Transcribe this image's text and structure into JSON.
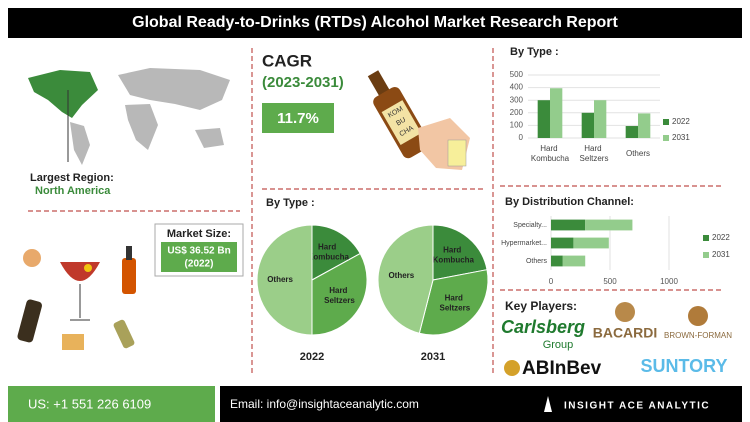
{
  "header": {
    "title": "Global Ready-to-Drinks (RTDs) Alcohol Market Research Report"
  },
  "region": {
    "label": "Largest Region:",
    "value": "North America"
  },
  "cagr": {
    "label": "CAGR",
    "period": "(2023-2031)",
    "value": "11.7%"
  },
  "bottle_label": [
    "KOM",
    "BU",
    "CHA"
  ],
  "market_size": {
    "label": "Market Size:",
    "value": "US$ 36.52 Bn",
    "year": "(2022)"
  },
  "pie_section": {
    "title": "By Type :"
  },
  "key_players": {
    "label": "Key Players:",
    "names": [
      "Carlsberg",
      "Group",
      "BACARDI",
      "BROWN-FORMAN",
      "ABInBev",
      "SUNTORY"
    ]
  },
  "footer": {
    "phone": "US: +1 551 226 6109",
    "email": "Email: info@insightaceanalytic.com",
    "brand": "INSIGHT ACE ANALYTIC"
  },
  "chart_data": [
    {
      "type": "bar",
      "title": "By Type :",
      "categories": [
        "Hard Kombucha",
        "Hard Seltzers",
        "Others"
      ],
      "series": [
        {
          "name": "2022",
          "color": "#3b8b3b",
          "values": [
            300,
            200,
            95
          ]
        },
        {
          "name": "2031",
          "color": "#93cc8c",
          "values": [
            395,
            300,
            195
          ]
        }
      ],
      "ylim": [
        0,
        500
      ],
      "yticks": [
        0,
        100,
        200,
        300,
        400,
        500
      ],
      "grid": true
    },
    {
      "type": "bar",
      "orientation": "horizontal",
      "stacked": true,
      "title": "By Distribution Channel:",
      "categories": [
        "Specialty...",
        "Hypermarket...",
        "Others"
      ],
      "series": [
        {
          "name": "2022",
          "color": "#3b8b3b",
          "values": [
            290,
            190,
            100
          ]
        },
        {
          "name": "2031",
          "color": "#93cc8c",
          "values": [
            400,
            300,
            190
          ]
        }
      ],
      "xlim": [
        0,
        1000
      ],
      "xticks": [
        0,
        500,
        1000
      ],
      "grid": true
    },
    {
      "type": "pie",
      "title": "2022",
      "categories": [
        "Hard Kombucha",
        "Hard Seltzers",
        "Others"
      ],
      "colors": [
        "#3b8b3b",
        "#5eab4c",
        "#9bce89"
      ],
      "values": [
        17,
        33,
        50
      ]
    },
    {
      "type": "pie",
      "title": "2031",
      "categories": [
        "Hard Kombucha",
        "Hard Seltzers",
        "Others"
      ],
      "colors": [
        "#3b8b3b",
        "#5eab4c",
        "#9bce89"
      ],
      "values": [
        22,
        32,
        46
      ]
    }
  ]
}
